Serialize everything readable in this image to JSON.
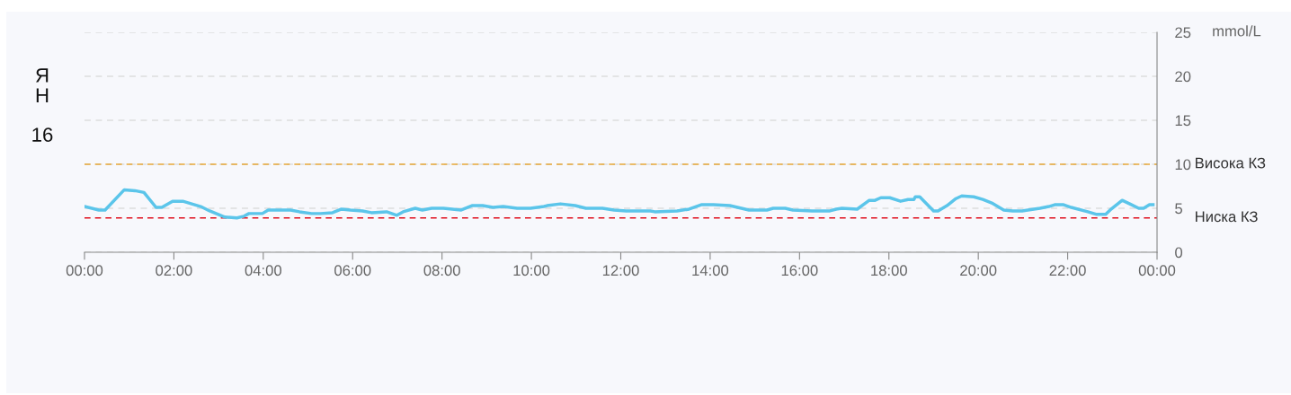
{
  "chart_data": {
    "type": "line",
    "annotations": [
      "Я\nН",
      "16"
    ],
    "ylabel": "mmol/L",
    "x": [
      0,
      0.32,
      0.46,
      0.89,
      1.13,
      1.33,
      1.6,
      1.73,
      1.97,
      2.2,
      2.4,
      2.6,
      2.8,
      3.14,
      3.41,
      3.57,
      3.68,
      3.98,
      4.11,
      4.34,
      4.61,
      4.81,
      5.08,
      5.28,
      5.55,
      5.75,
      5.95,
      6.22,
      6.42,
      6.76,
      6.99,
      7.13,
      7.4,
      7.56,
      7.77,
      8.03,
      8.23,
      8.43,
      8.67,
      8.91,
      9.14,
      9.37,
      9.68,
      9.98,
      10.28,
      10.35,
      10.65,
      10.98,
      11.22,
      11.59,
      11.85,
      12.12,
      12.66,
      12.76,
      13.26,
      13.53,
      13.8,
      14.07,
      14.44,
      14.87,
      15.27,
      15.41,
      15.68,
      15.85,
      16.28,
      16.41,
      16.68,
      16.82,
      16.95,
      17.29,
      17.56,
      17.69,
      17.82,
      18.02,
      18.26,
      18.43,
      18.56,
      18.59,
      18.69,
      19.0,
      19.1,
      19.3,
      19.5,
      19.63,
      19.9,
      20.1,
      20.3,
      20.57,
      20.77,
      20.98,
      21.11,
      21.38,
      21.58,
      21.71,
      21.91,
      22.08,
      22.45,
      22.65,
      22.85,
      22.95,
      23.22,
      23.39,
      23.59,
      23.7,
      23.83,
      23.91
    ],
    "series": [
      {
        "color": "#5bc5ea",
        "values": [
          5.2,
          4.8,
          4.8,
          7.1,
          7.0,
          6.8,
          5.1,
          5.1,
          5.8,
          5.8,
          5.5,
          5.2,
          4.7,
          4.0,
          3.9,
          4.1,
          4.4,
          4.4,
          4.8,
          4.8,
          4.8,
          4.6,
          4.4,
          4.4,
          4.5,
          4.9,
          4.8,
          4.7,
          4.5,
          4.6,
          4.2,
          4.6,
          5.0,
          4.8,
          5.0,
          5.0,
          4.9,
          4.8,
          5.3,
          5.3,
          5.1,
          5.2,
          5.0,
          5.0,
          5.2,
          5.3,
          5.5,
          5.3,
          5.0,
          5.0,
          4.8,
          4.7,
          4.7,
          4.6,
          4.7,
          4.9,
          5.4,
          5.4,
          5.3,
          4.8,
          4.8,
          5.0,
          5.0,
          4.8,
          4.7,
          4.7,
          4.7,
          4.9,
          5.0,
          4.9,
          5.9,
          5.9,
          6.2,
          6.2,
          5.8,
          6.0,
          6.0,
          6.3,
          6.3,
          4.7,
          4.7,
          5.3,
          6.1,
          6.4,
          6.3,
          6.0,
          5.6,
          4.8,
          4.7,
          4.7,
          4.8,
          5.0,
          5.2,
          5.4,
          5.4,
          5.1,
          4.6,
          4.3,
          4.3,
          4.8,
          5.9,
          5.5,
          5.0,
          5.0,
          5.4,
          5.4
        ]
      }
    ],
    "xlim": [
      0,
      24
    ],
    "xticks": [
      {
        "value": 0,
        "label": "00:00"
      },
      {
        "value": 2,
        "label": "02:00"
      },
      {
        "value": 4,
        "label": "04:00"
      },
      {
        "value": 6,
        "label": "06:00"
      },
      {
        "value": 8,
        "label": "08:00"
      },
      {
        "value": 10,
        "label": "10:00"
      },
      {
        "value": 12,
        "label": "12:00"
      },
      {
        "value": 14,
        "label": "14:00"
      },
      {
        "value": 16,
        "label": "16:00"
      },
      {
        "value": 18,
        "label": "18:00"
      },
      {
        "value": 20,
        "label": "20:00"
      },
      {
        "value": 22,
        "label": "22:00"
      },
      {
        "value": 24,
        "label": "00:00"
      }
    ],
    "ylim": [
      0,
      25
    ],
    "yticks": [
      0,
      5,
      10,
      15,
      20,
      25
    ],
    "grid": "y",
    "line_style": "solid",
    "ref_lines": [
      {
        "axis": "y",
        "value": 10,
        "label": "Висока КЗ",
        "color": "#e8a838",
        "line_style": "dashed"
      },
      {
        "axis": "y",
        "value": 3.9,
        "label": "Ниска КЗ",
        "color": "#e0101e",
        "line_style": "dashed"
      }
    ]
  }
}
